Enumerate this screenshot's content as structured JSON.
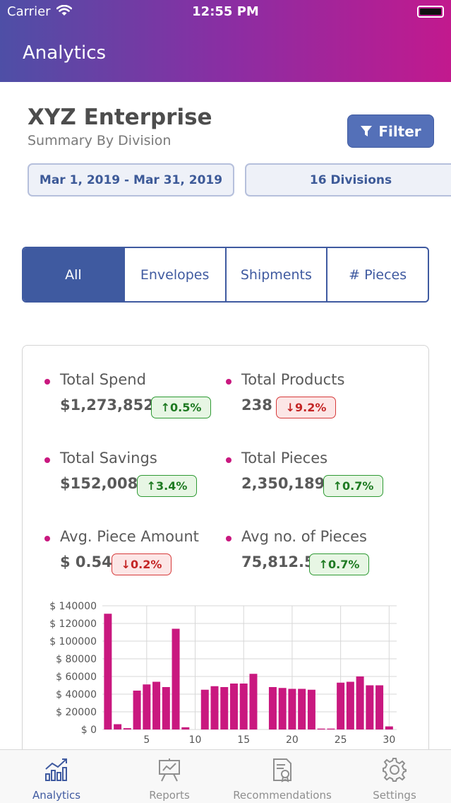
{
  "status_bar": {
    "carrier": "Carrier",
    "time": "12:55 PM"
  },
  "header": {
    "title": "Analytics"
  },
  "summary": {
    "company": "XYZ Enterprise",
    "subtitle": "Summary By Division",
    "filter_label": "Filter",
    "date_range": "Mar 1, 2019 - Mar 31, 2019",
    "divisions": "16 Divisions"
  },
  "tabs": [
    {
      "label": "All",
      "selected": true
    },
    {
      "label": "Envelopes",
      "selected": false
    },
    {
      "label": "Shipments",
      "selected": false
    },
    {
      "label": "# Pieces",
      "selected": false
    }
  ],
  "metrics": [
    {
      "label": "Total Spend",
      "value": "$1,273,852",
      "change": "0.5%",
      "direction": "up"
    },
    {
      "label": "Total Products",
      "value": "238",
      "change": "9.2%",
      "direction": "down"
    },
    {
      "label": "Total Savings",
      "value": "$152,008",
      "change": "3.4%",
      "direction": "up"
    },
    {
      "label": "Total Pieces",
      "value": "2,350,189",
      "change": "0.7%",
      "direction": "up"
    },
    {
      "label": "Avg. Piece Amount",
      "value": "$ 0.54",
      "change": "0.2%",
      "direction": "down"
    },
    {
      "label": "Avg no. of Pieces",
      "value": "75,812.5",
      "change": "0.7%",
      "direction": "up"
    }
  ],
  "colors": {
    "accent": "#3f5aa0",
    "bar": "#c9187f",
    "up": "#1e7a22",
    "down": "#c42626"
  },
  "chart_data": {
    "type": "bar",
    "x": [
      1,
      2,
      3,
      4,
      5,
      6,
      7,
      8,
      9,
      10,
      11,
      12,
      13,
      14,
      15,
      16,
      17,
      18,
      19,
      20,
      21,
      22,
      23,
      24,
      25,
      26,
      27,
      28,
      29,
      30
    ],
    "values": [
      131000,
      6000,
      1500,
      44000,
      51000,
      54000,
      48000,
      114000,
      2500,
      0,
      45000,
      49000,
      48000,
      52000,
      52000,
      63000,
      0,
      48000,
      47000,
      46000,
      46000,
      45000,
      1000,
      1000,
      53000,
      54000,
      60000,
      50000,
      50000,
      3500
    ],
    "ylim": [
      0,
      140000
    ],
    "y_ticks": [
      "$ 0",
      "$ 20000",
      "$ 40000",
      "$ 60000",
      "$ 80000",
      "$ 100000",
      "$ 120000",
      "$ 140000"
    ],
    "x_ticks": [
      "5",
      "10",
      "15",
      "20",
      "25",
      "30"
    ],
    "grid": true
  },
  "tabbar": [
    {
      "label": "Analytics",
      "icon": "bar-chart-icon",
      "active": true
    },
    {
      "label": "Reports",
      "icon": "presentation-easel-icon",
      "active": false
    },
    {
      "label": "Recommendations",
      "icon": "certificate-document-icon",
      "active": false
    },
    {
      "label": "Settings",
      "icon": "gear-icon",
      "active": false
    }
  ]
}
